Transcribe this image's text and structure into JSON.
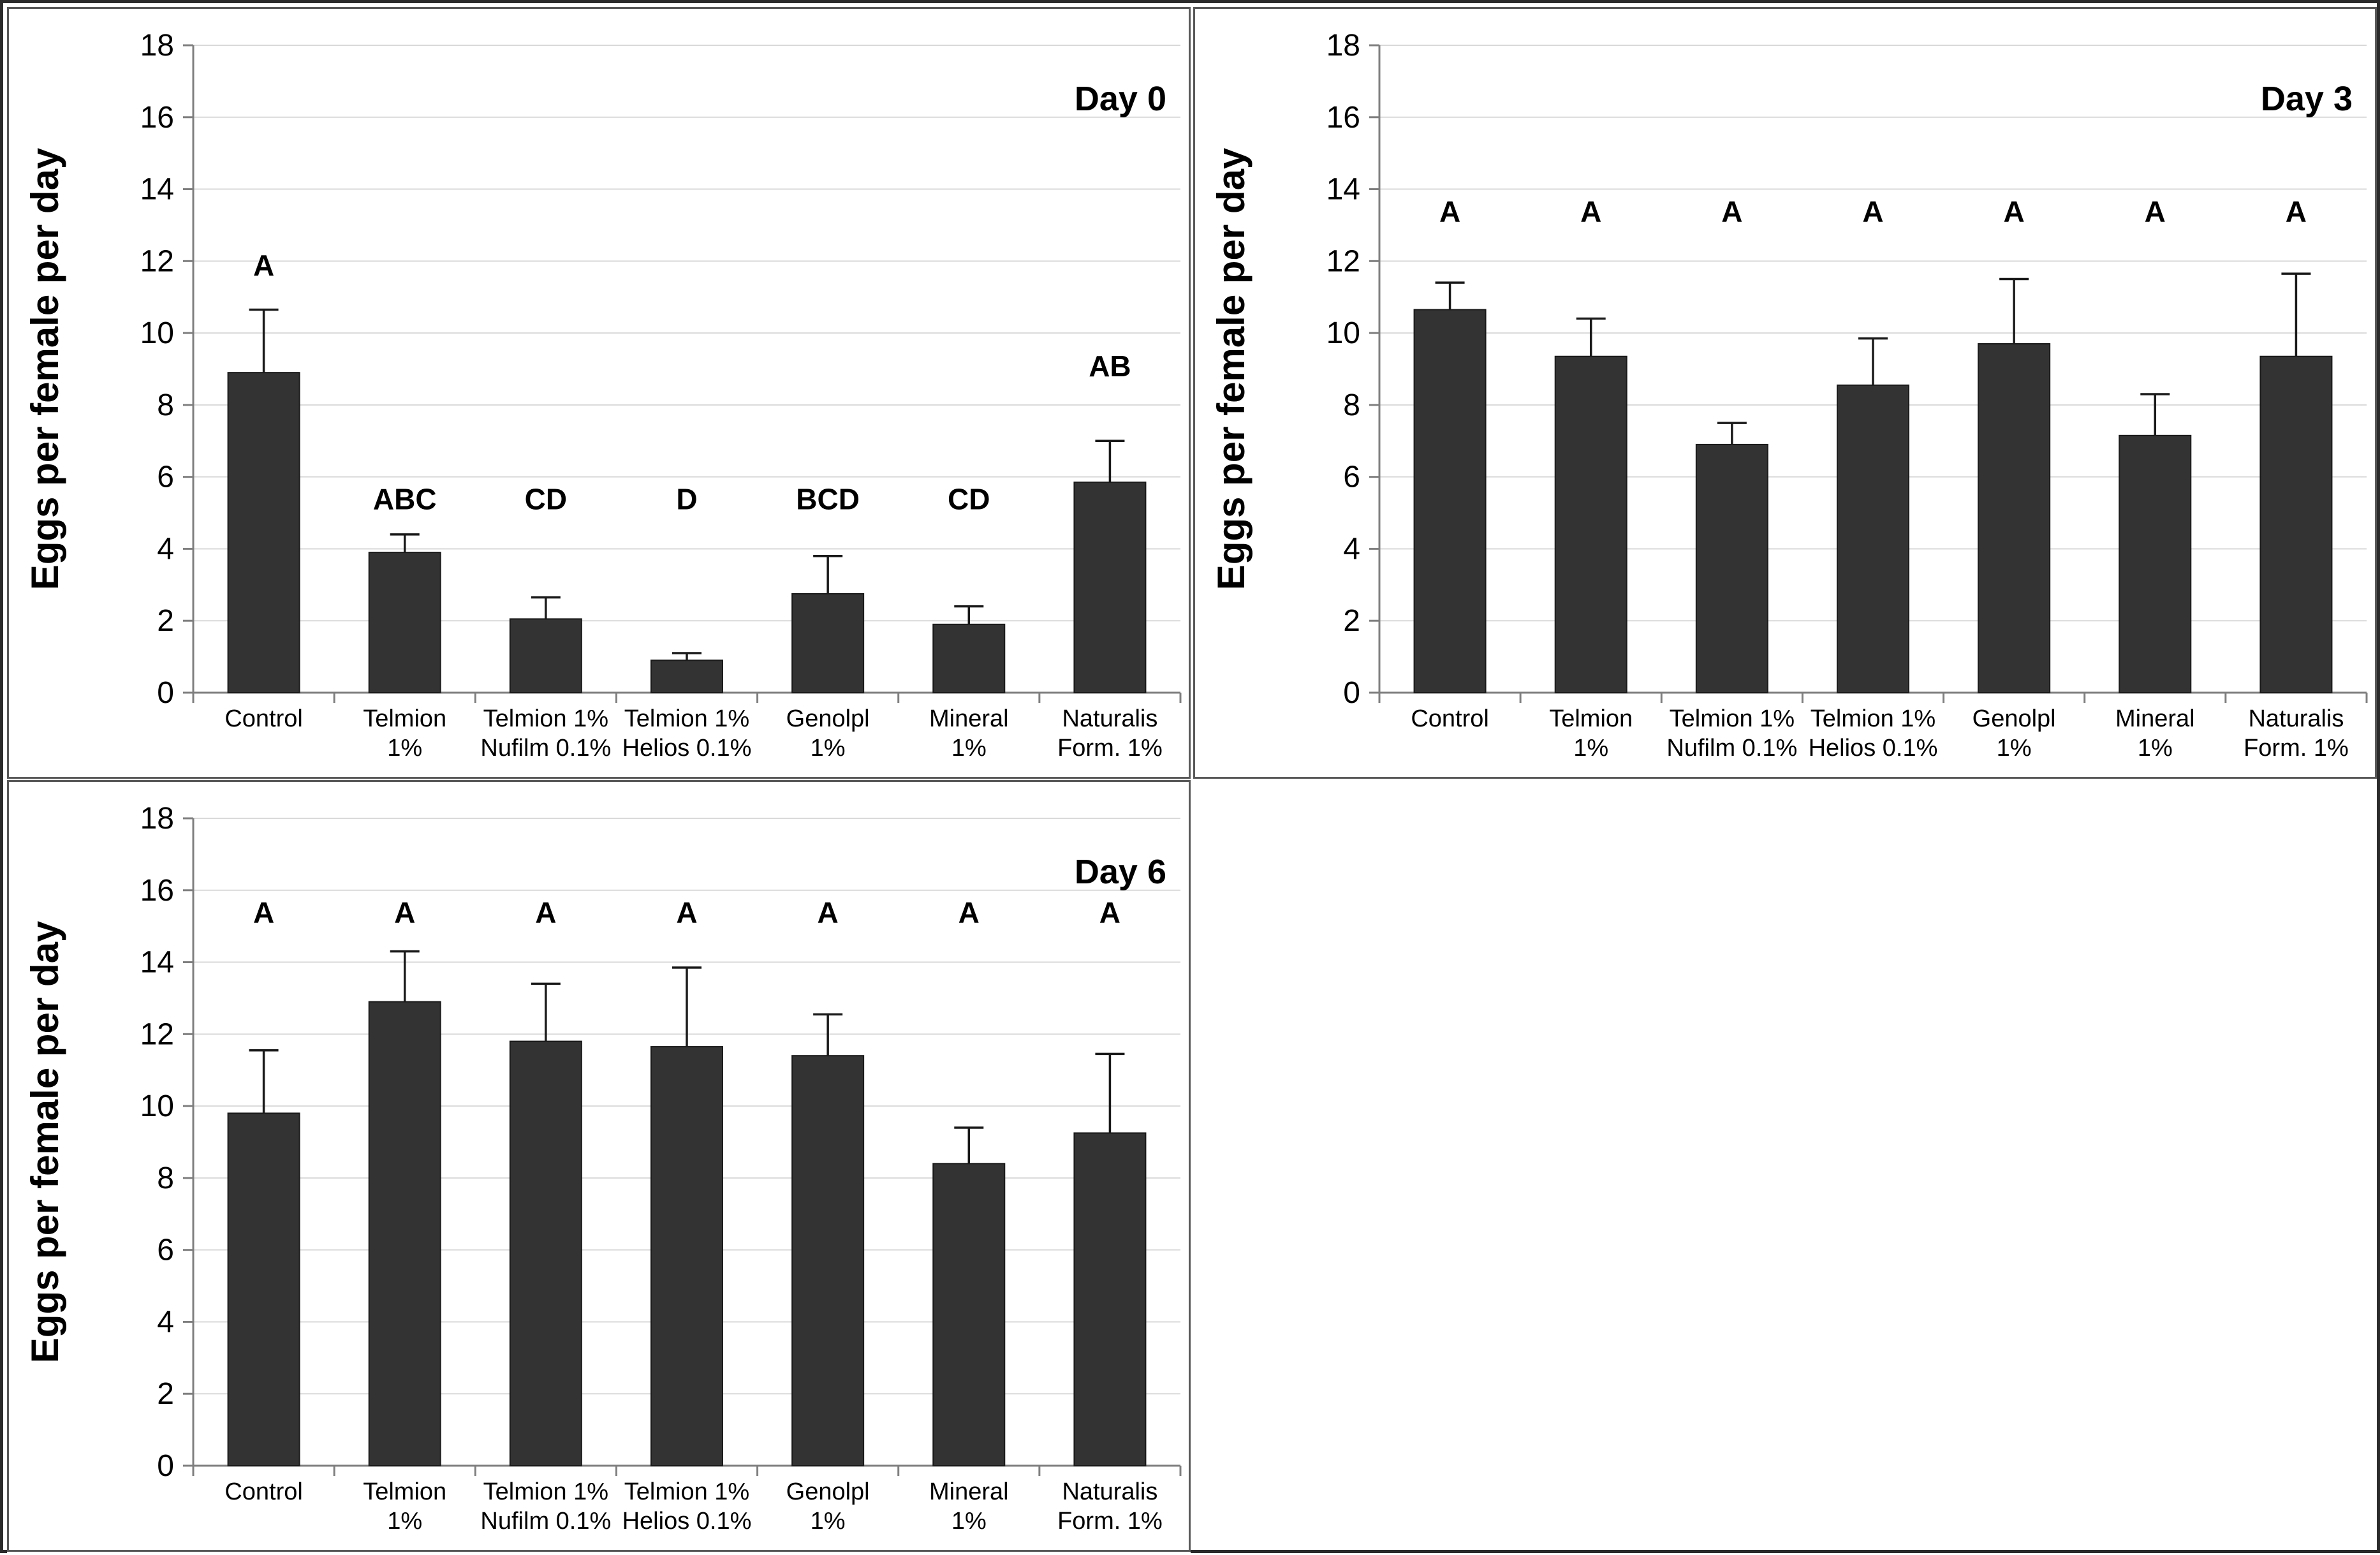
{
  "figure": {
    "ylabel": "Eggs per female per day",
    "category_lines": [
      [
        "Control"
      ],
      [
        "Telmion",
        "1%"
      ],
      [
        "Telmion 1%",
        "Nufilm 0.1%"
      ],
      [
        "Telmion 1%",
        "Helios 0.1%"
      ],
      [
        "Genolpl",
        "1%"
      ],
      [
        "Mineral",
        "1%"
      ],
      [
        "Naturalis",
        "Form. 1%"
      ]
    ]
  },
  "colors": {
    "bar_fill": "#333333",
    "bar_outline": "#1a1a1a",
    "error_bar": "#1a1a1a",
    "gridline": "#d9d9d9",
    "axis_line": "#7f7f7f",
    "panel_border": "#595959",
    "outer_border": "#2b2b2b",
    "text": "#000000",
    "background": "#ffffff"
  },
  "chart_data": [
    {
      "type": "bar",
      "title": "Day 0",
      "xlabel": "",
      "ylabel": "Eggs per female per day",
      "ylim": [
        0,
        18
      ],
      "ytick_step": 2,
      "grid": true,
      "legend": "none",
      "categories": [
        "Control",
        "Telmion 1%",
        "Telmion 1% Nufilm 0.1%",
        "Telmion 1% Helios 0.1%",
        "Genolpl 1%",
        "Mineral 1%",
        "Naturalis Form. 1%"
      ],
      "values": [
        8.9,
        3.9,
        2.05,
        0.9,
        2.75,
        1.9,
        5.85
      ],
      "error_top": [
        10.65,
        4.4,
        2.65,
        1.1,
        3.8,
        2.4,
        7.0
      ],
      "sig_letters": [
        "A",
        "ABC",
        "CD",
        "D",
        "BCD",
        "CD",
        "AB"
      ],
      "sig_letter_y": [
        11.6,
        5.1,
        5.1,
        5.1,
        5.1,
        5.1,
        8.8
      ]
    },
    {
      "type": "bar",
      "title": "Day 3",
      "xlabel": "",
      "ylabel": "Eggs per female per day",
      "ylim": [
        0,
        18
      ],
      "ytick_step": 2,
      "grid": true,
      "legend": "none",
      "categories": [
        "Control",
        "Telmion 1%",
        "Telmion 1% Nufilm 0.1%",
        "Telmion 1% Helios 0.1%",
        "Genolpl 1%",
        "Mineral 1%",
        "Naturalis Form. 1%"
      ],
      "values": [
        10.65,
        9.35,
        6.9,
        8.55,
        9.7,
        7.15,
        9.35
      ],
      "error_top": [
        11.4,
        10.4,
        7.5,
        9.85,
        11.5,
        8.3,
        11.65
      ],
      "sig_letters": [
        "A",
        "A",
        "A",
        "A",
        "A",
        "A",
        "A"
      ],
      "sig_letter_y": [
        13.1,
        13.1,
        13.1,
        13.1,
        13.1,
        13.1,
        13.1
      ]
    },
    {
      "type": "bar",
      "title": "Day 6",
      "xlabel": "",
      "ylabel": "Eggs per female per day",
      "ylim": [
        0,
        18
      ],
      "ytick_step": 2,
      "grid": true,
      "legend": "none",
      "categories": [
        "Control",
        "Telmion 1%",
        "Telmion 1% Nufilm 0.1%",
        "Telmion 1% Helios 0.1%",
        "Genolpl 1%",
        "Mineral 1%",
        "Naturalis Form. 1%"
      ],
      "values": [
        9.8,
        12.9,
        11.8,
        11.65,
        11.4,
        8.4,
        9.25
      ],
      "error_top": [
        11.55,
        14.3,
        13.4,
        13.85,
        12.55,
        9.4,
        11.45
      ],
      "sig_letters": [
        "A",
        "A",
        "A",
        "A",
        "A",
        "A",
        "A"
      ],
      "sig_letter_y": [
        15.1,
        15.1,
        15.1,
        15.1,
        15.1,
        15.1,
        15.1
      ]
    }
  ]
}
